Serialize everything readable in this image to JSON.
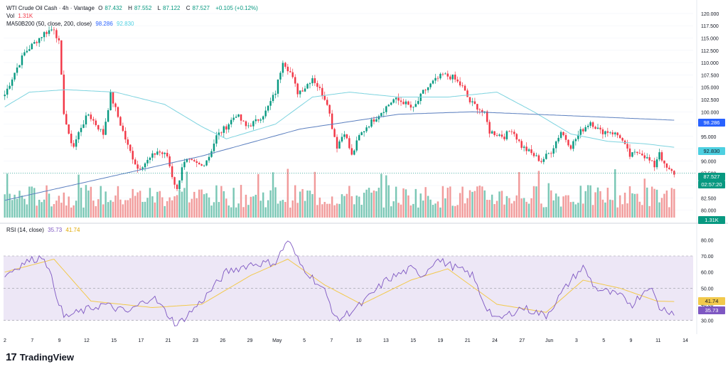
{
  "legend": {
    "symbol": "WTI Crude Oil Cash · 4h · Vantage",
    "open_label": "O",
    "open": "87.432",
    "high_label": "H",
    "high": "87.552",
    "low_label": "L",
    "low": "87.122",
    "close_label": "C",
    "close": "87.527",
    "change": "+0.105 (+0.12%)",
    "vol_label": "Vol",
    "vol": "1.31K",
    "ma_label": "MA50B200 (50, close, 200, close)",
    "ma50": "98.286",
    "ma200": "92.830",
    "rsi_label": "RSI (14, close)",
    "rsi": "35.73",
    "rsi_ma": "41.74"
  },
  "badges": {
    "ma50": "98.286",
    "ma200": "92.830",
    "last": "87.527",
    "countdown": "02:57:20",
    "vol": "1.31K",
    "rsi_ma": "41.74",
    "rsi": "35.73"
  },
  "brand": {
    "mark": "17",
    "name": "TradingView"
  },
  "colors": {
    "up": "#089981",
    "down": "#f23645",
    "vol_up": "#7ac7b5",
    "vol_down": "#f19a9a",
    "ma50": "#5b7fbf",
    "ma200": "#7dd3df",
    "rsi": "#7e57c2",
    "rsi_ma": "#f2c94c",
    "rsi_band": "#ede7f6"
  },
  "chart_data": [
    {
      "type": "candlestick",
      "title": "WTI Crude Oil Cash · 4h · Vantage",
      "ylim": [
        78.5,
        121
      ],
      "price_ticks": [
        "120.000",
        "117.500",
        "115.000",
        "112.500",
        "110.000",
        "107.500",
        "105.000",
        "102.500",
        "100.000",
        "97.500",
        "95.000",
        "92.500",
        "90.000",
        "87.500",
        "85.000",
        "82.500",
        "80.000"
      ],
      "x_ticks": [
        "2",
        "7",
        "9",
        "12",
        "15",
        "17",
        "21",
        "23",
        "26",
        "29",
        "May",
        "5",
        "7",
        "10",
        "13",
        "15",
        "19",
        "21",
        "24",
        "27",
        "Jun",
        "3",
        "5",
        "9",
        "11",
        "14"
      ],
      "close_anchors": [
        [
          0,
          103.5
        ],
        [
          4,
          108
        ],
        [
          8,
          112
        ],
        [
          12,
          114
        ],
        [
          16,
          116
        ],
        [
          20,
          117
        ],
        [
          22,
          114
        ],
        [
          24,
          100
        ],
        [
          26,
          95
        ],
        [
          28,
          93
        ],
        [
          31,
          97
        ],
        [
          34,
          99.5
        ],
        [
          37,
          97.5
        ],
        [
          40,
          95.5
        ],
        [
          43,
          103.5
        ],
        [
          46,
          99
        ],
        [
          50,
          93
        ],
        [
          54,
          88.5
        ],
        [
          58,
          90
        ],
        [
          62,
          92
        ],
        [
          66,
          91
        ],
        [
          68,
          87
        ],
        [
          70,
          84
        ],
        [
          72,
          89
        ],
        [
          74,
          90
        ],
        [
          77,
          89.5
        ],
        [
          80,
          89
        ],
        [
          83,
          91
        ],
        [
          86,
          95
        ],
        [
          90,
          97
        ],
        [
          94,
          99.5
        ],
        [
          98,
          97
        ],
        [
          102,
          98
        ],
        [
          106,
          100
        ],
        [
          110,
          104
        ],
        [
          113,
          110.5
        ],
        [
          116,
          108
        ],
        [
          119,
          104
        ],
        [
          122,
          105
        ],
        [
          125,
          107
        ],
        [
          128,
          104.5
        ],
        [
          131,
          102
        ],
        [
          133,
          97
        ],
        [
          135,
          93
        ],
        [
          138,
          96
        ],
        [
          141,
          91
        ],
        [
          144,
          95
        ],
        [
          147,
          97
        ],
        [
          150,
          98.5
        ],
        [
          154,
          100.5
        ],
        [
          158,
          102.5
        ],
        [
          162,
          102
        ],
        [
          166,
          100.5
        ],
        [
          170,
          104
        ],
        [
          174,
          106
        ],
        [
          178,
          107.5
        ],
        [
          182,
          107
        ],
        [
          186,
          105
        ],
        [
          189,
          102
        ],
        [
          192,
          101
        ],
        [
          195,
          99.5
        ],
        [
          197,
          96
        ],
        [
          200,
          95.5
        ],
        [
          203,
          95
        ],
        [
          206,
          96.5
        ],
        [
          210,
          93
        ],
        [
          214,
          91.5
        ],
        [
          218,
          90
        ],
        [
          222,
          92
        ],
        [
          226,
          96
        ],
        [
          230,
          93
        ],
        [
          234,
          96
        ],
        [
          238,
          98
        ],
        [
          242,
          96
        ],
        [
          246,
          96
        ],
        [
          250,
          95
        ],
        [
          254,
          91
        ],
        [
          258,
          92
        ],
        [
          262,
          90
        ],
        [
          264,
          89
        ],
        [
          266,
          92
        ],
        [
          268,
          89
        ],
        [
          270,
          88
        ],
        [
          272,
          87.5
        ]
      ],
      "ma50_anchors": [
        [
          0,
          82
        ],
        [
          40,
          86.5
        ],
        [
          80,
          91
        ],
        [
          120,
          96.5
        ],
        [
          160,
          99.5
        ],
        [
          190,
          100
        ],
        [
          230,
          99.2
        ],
        [
          272,
          98.3
        ]
      ],
      "ma200_anchors": [
        [
          0,
          101
        ],
        [
          10,
          104
        ],
        [
          25,
          104.5
        ],
        [
          45,
          104
        ],
        [
          65,
          101.5
        ],
        [
          80,
          97
        ],
        [
          90,
          94.5
        ],
        [
          110,
          97.5
        ],
        [
          125,
          103
        ],
        [
          140,
          104
        ],
        [
          160,
          103
        ],
        [
          180,
          103
        ],
        [
          200,
          104
        ],
        [
          215,
          100
        ],
        [
          230,
          95.5
        ],
        [
          245,
          94
        ],
        [
          260,
          93.5
        ],
        [
          272,
          92.8
        ]
      ]
    },
    {
      "type": "bar",
      "title": "Vol",
      "last_value": "1.31K"
    },
    {
      "type": "line",
      "title": "RSI (14, close)",
      "ylim": [
        25,
        85
      ],
      "y_ticks": [
        "80.00",
        "70.00",
        "60.00",
        "50.00",
        "40.00",
        "30.00"
      ],
      "bands": [
        30,
        50,
        70
      ],
      "rsi_anchors": [
        [
          0,
          58
        ],
        [
          8,
          66
        ],
        [
          16,
          70
        ],
        [
          24,
          32
        ],
        [
          40,
          40
        ],
        [
          50,
          35
        ],
        [
          60,
          45
        ],
        [
          70,
          27
        ],
        [
          80,
          42
        ],
        [
          90,
          60
        ],
        [
          100,
          65
        ],
        [
          110,
          66
        ],
        [
          115,
          80
        ],
        [
          120,
          65
        ],
        [
          130,
          48
        ],
        [
          135,
          30
        ],
        [
          145,
          40
        ],
        [
          155,
          55
        ],
        [
          165,
          62
        ],
        [
          170,
          58
        ],
        [
          175,
          68
        ],
        [
          180,
          65
        ],
        [
          190,
          58
        ],
        [
          195,
          40
        ],
        [
          200,
          30
        ],
        [
          210,
          38
        ],
        [
          220,
          33
        ],
        [
          230,
          55
        ],
        [
          235,
          63
        ],
        [
          240,
          50
        ],
        [
          250,
          45
        ],
        [
          255,
          40
        ],
        [
          262,
          52
        ],
        [
          266,
          38
        ],
        [
          272,
          35
        ]
      ],
      "rsi_ma_anchors": [
        [
          0,
          60
        ],
        [
          20,
          68
        ],
        [
          35,
          42
        ],
        [
          60,
          38
        ],
        [
          80,
          40
        ],
        [
          100,
          58
        ],
        [
          115,
          68
        ],
        [
          130,
          52
        ],
        [
          145,
          40
        ],
        [
          165,
          55
        ],
        [
          180,
          62
        ],
        [
          200,
          40
        ],
        [
          220,
          35
        ],
        [
          235,
          55
        ],
        [
          250,
          50
        ],
        [
          265,
          42
        ],
        [
          272,
          41.7
        ]
      ]
    }
  ]
}
